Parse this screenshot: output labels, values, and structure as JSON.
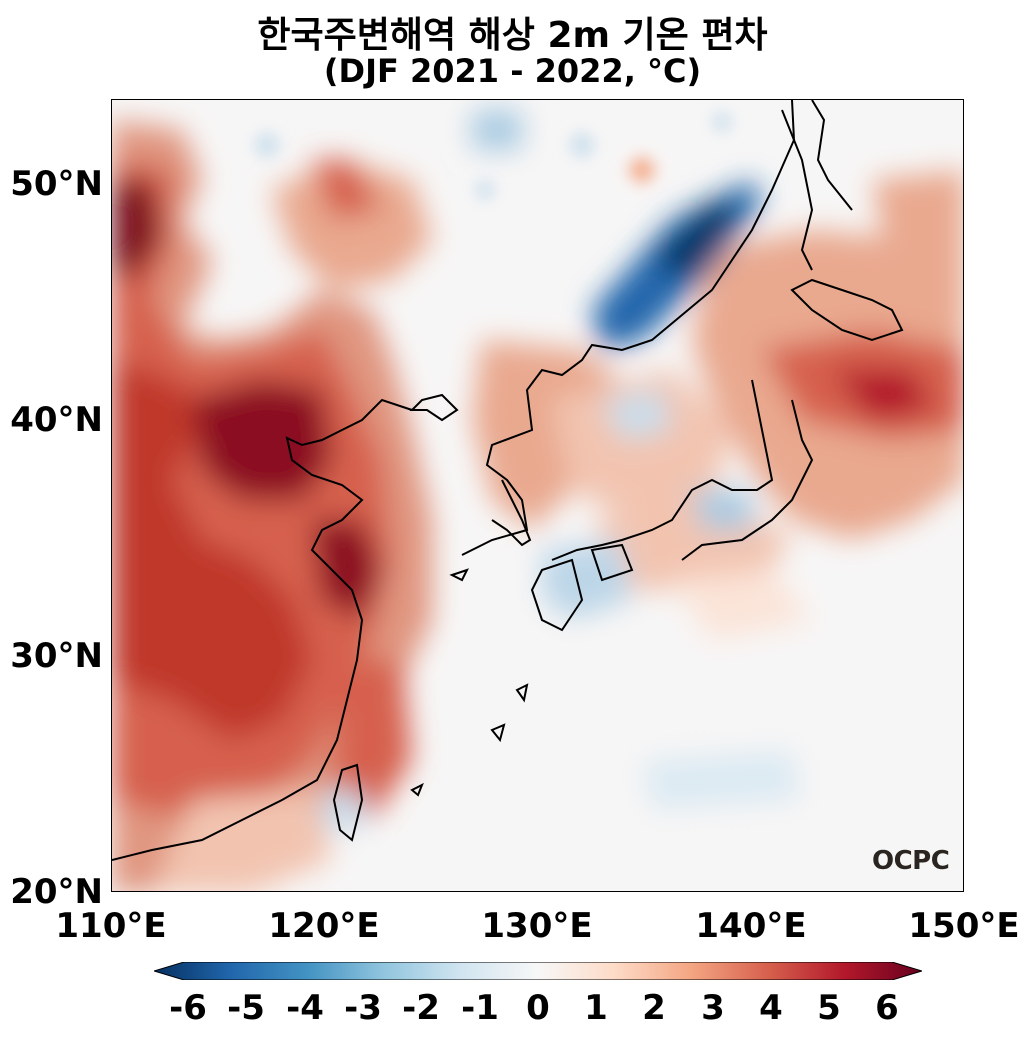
{
  "title_line1": "한국주변해역 해상 2m 기온 편차",
  "title_line2": "(DJF 2021 - 2022, °C)",
  "y_ticks": [
    "50°N",
    "40°N",
    "30°N",
    "20°N"
  ],
  "x_ticks": [
    "110°E",
    "120°E",
    "130°E",
    "140°E",
    "150°E"
  ],
  "colorbar": {
    "ticks": [
      "-6",
      "-5",
      "-4",
      "-3",
      "-2",
      "-1",
      "0",
      "1",
      "2",
      "3",
      "4",
      "5",
      "6"
    ],
    "colors": [
      "#053061",
      "#2166ac",
      "#4393c3",
      "#92c5de",
      "#d1e5f0",
      "#f7f7f7",
      "#fddbc7",
      "#f4a582",
      "#d6604d",
      "#b2182b",
      "#67001f"
    ]
  },
  "logo_text": "OCPC",
  "chart_data": {
    "type": "heatmap",
    "variable": "2m air temperature anomaly",
    "units": "°C",
    "lon_range": [
      110,
      150
    ],
    "lat_range": [
      20,
      53.5
    ],
    "value_range": [
      -6,
      6
    ],
    "colormap": "RdBu_r"
  }
}
